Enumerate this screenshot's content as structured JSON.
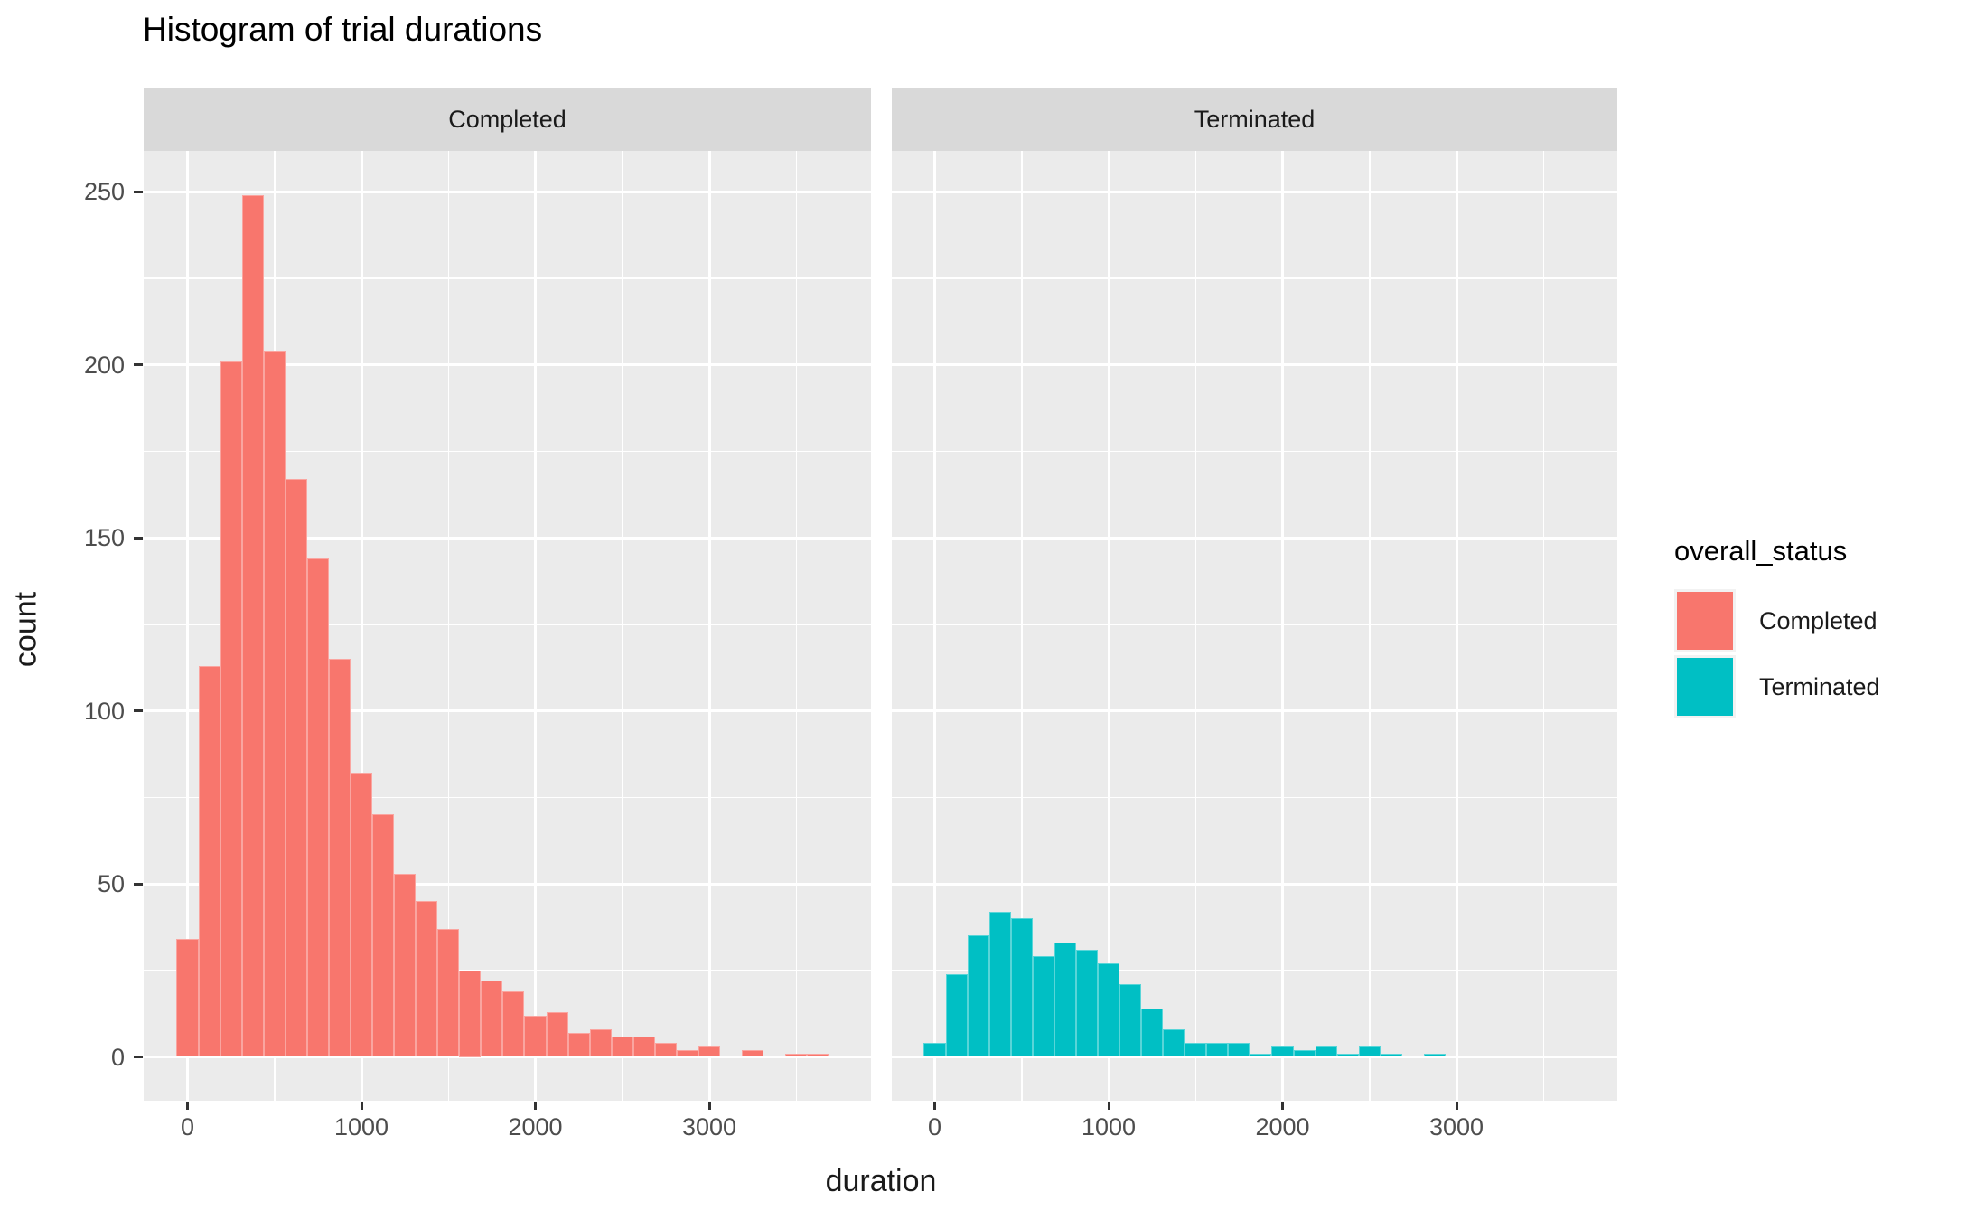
{
  "title": "Histogram of trial durations",
  "chart_data": {
    "type": "histogram",
    "title": "Histogram of trial durations",
    "xlabel": "duration",
    "ylabel": "count",
    "bin_width": 125,
    "x_ticks": [
      0,
      1000,
      2000,
      3000
    ],
    "x_minor_gridlines": [
      500,
      1500,
      2500,
      3500
    ],
    "y_ticks": [
      0,
      50,
      100,
      150,
      200,
      250
    ],
    "y_minor_gridlines": [
      25,
      75,
      125,
      175,
      225
    ],
    "x_range": [
      -250,
      3940
    ],
    "y_range": [
      0,
      262
    ],
    "grid": "on",
    "legend_position": "right",
    "facets": [
      {
        "label": "Completed",
        "color": "#F8766D",
        "bin_centers": [
          0,
          125,
          250,
          375,
          500,
          625,
          750,
          875,
          1000,
          1125,
          1250,
          1375,
          1500,
          1625,
          1750,
          1875,
          2000,
          2125,
          2250,
          2375,
          2500,
          2625,
          2750,
          2875,
          3000,
          3125,
          3250,
          3375,
          3500,
          3625
        ],
        "counts": [
          34,
          113,
          201,
          249,
          204,
          167,
          144,
          115,
          82,
          70,
          53,
          45,
          37,
          25,
          22,
          19,
          12,
          13,
          7,
          8,
          6,
          6,
          4,
          2,
          3,
          0,
          2,
          0,
          1,
          1
        ]
      },
      {
        "label": "Terminated",
        "color": "#00BFC4",
        "bin_centers": [
          0,
          125,
          250,
          375,
          500,
          625,
          750,
          875,
          1000,
          1125,
          1250,
          1375,
          1500,
          1625,
          1750,
          1875,
          2000,
          2125,
          2250,
          2375,
          2500,
          2625,
          2750,
          2875
        ],
        "counts": [
          4,
          24,
          35,
          42,
          40,
          29,
          33,
          31,
          27,
          21,
          14,
          8,
          4,
          4,
          4,
          1,
          3,
          2,
          3,
          1,
          3,
          1,
          0,
          1
        ]
      }
    ],
    "legend": {
      "title": "overall_status",
      "entries": [
        {
          "label": "Completed",
          "color": "#F8766D"
        },
        {
          "label": "Terminated",
          "color": "#00BFC4"
        }
      ]
    }
  },
  "colors": {
    "panel_background": "#EBEBEB",
    "strip_background": "#D9D9D9",
    "gridline": "#FFFFFF",
    "axis_text": "#4D4D4D",
    "tick_mark": "#333333",
    "title_text": "#000000"
  }
}
